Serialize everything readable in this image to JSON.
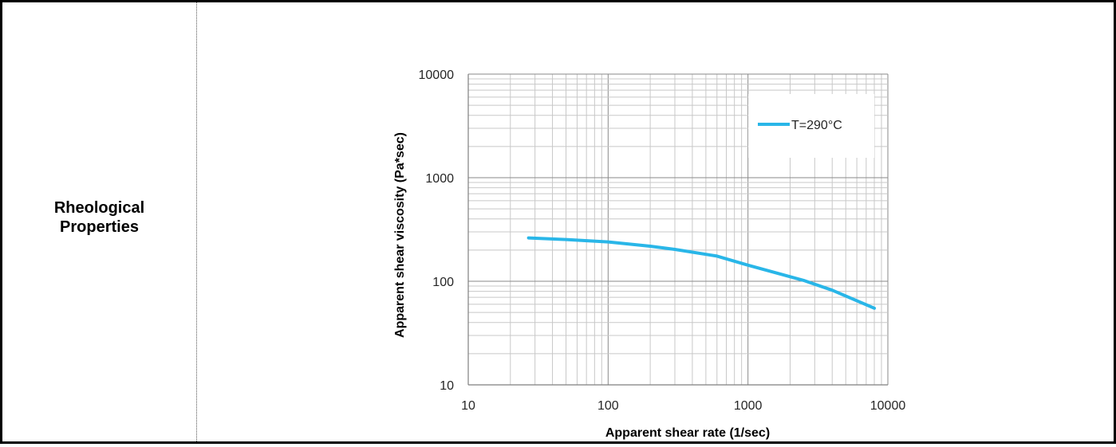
{
  "row": {
    "label": "Rheological Properties"
  },
  "chart_data": {
    "type": "line",
    "xscale": "log",
    "yscale": "log",
    "xlabel": "Apparent shear rate (1/sec)",
    "ylabel": "Apparent shear viscosity (Pa*sec)",
    "xlim": [
      10,
      10000
    ],
    "ylim": [
      10,
      10000
    ],
    "x_ticks": [
      "10",
      "100",
      "1000",
      "10000"
    ],
    "y_ticks": [
      "10",
      "100",
      "1000",
      "10000"
    ],
    "grid": true,
    "legend_position": "top-right",
    "series_color": "#29b6e8",
    "series": [
      {
        "name": "T=290°C",
        "x": [
          27,
          50,
          100,
          200,
          300,
          600,
          1000,
          2500,
          4000,
          8000
        ],
        "y": [
          262,
          253,
          240,
          218,
          203,
          175,
          143,
          102,
          82,
          55
        ]
      }
    ]
  }
}
